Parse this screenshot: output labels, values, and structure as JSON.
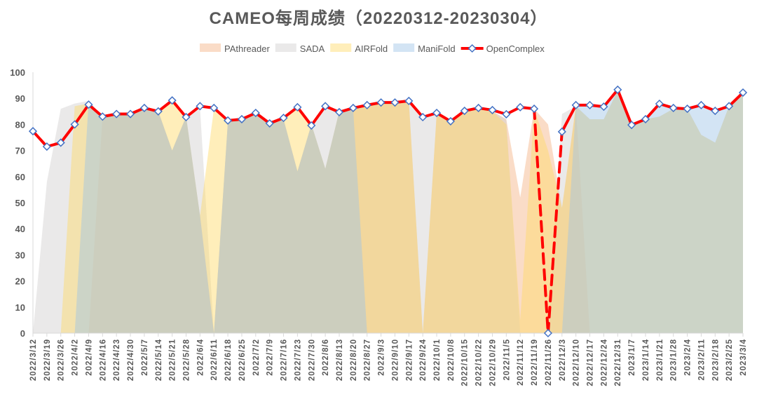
{
  "chart_data": {
    "type": "area",
    "title": "CAMEO每周成绩（20220312-20230304）",
    "xlabel": "",
    "ylabel": "",
    "ylim": [
      0,
      100
    ],
    "yticks": [
      "0",
      "10",
      "20",
      "30",
      "40",
      "50",
      "60",
      "70",
      "80",
      "90",
      "100"
    ],
    "legend_position": "top",
    "categories": [
      "2022/3/12",
      "2022/3/19",
      "2022/3/26",
      "2022/4/2",
      "2022/4/9",
      "2022/4/16",
      "2022/4/23",
      "2022/4/30",
      "2022/5/7",
      "2022/5/14",
      "2022/5/21",
      "2022/5/28",
      "2022/6/4",
      "2022/6/11",
      "2022/6/18",
      "2022/6/25",
      "2022/7/2",
      "2022/7/9",
      "2022/7/16",
      "2022/7/23",
      "2022/7/30",
      "2022/8/6",
      "2022/8/13",
      "2022/8/20",
      "2022/8/27",
      "2022/9/3",
      "2022/9/10",
      "2022/9/17",
      "2022/9/24",
      "2022/10/1",
      "2022/10/8",
      "2022/10/15",
      "2022/10/22",
      "2022/10/29",
      "2022/11/5",
      "2022/11/12",
      "2022/11/19",
      "2022/11/26",
      "2022/12/3",
      "2022/12/10",
      "2022/12/17",
      "2022/12/24",
      "2022/12/31",
      "2023/1/7",
      "2023/1/14",
      "2023/1/21",
      "2023/1/28",
      "2023/2/4",
      "2023/2/11",
      "2023/2/18",
      "2023/2/25",
      "2023/3/4"
    ],
    "series": [
      {
        "name": "PAthreader",
        "kind": "area",
        "color": "#f4b183",
        "values": [
          0,
          0,
          0,
          0,
          0,
          83,
          84,
          84,
          86,
          85,
          70,
          83,
          45,
          0,
          81,
          82,
          84,
          80,
          82,
          62,
          80,
          63,
          85,
          86,
          87,
          88,
          88,
          89,
          0,
          84,
          81,
          85,
          86,
          85,
          82,
          52,
          86,
          80,
          48,
          87,
          0,
          0,
          0,
          0,
          0,
          0,
          0,
          0,
          0,
          0,
          0,
          0
        ]
      },
      {
        "name": "SADA",
        "kind": "area",
        "color": "#d0cece",
        "values": [
          0,
          58,
          86,
          88,
          89,
          83,
          84,
          84,
          86,
          85,
          70,
          83,
          86,
          0,
          81,
          82,
          84,
          80,
          82,
          62,
          80,
          87,
          85,
          86,
          87,
          88,
          88,
          89,
          83,
          84,
          81,
          85,
          86,
          85,
          82,
          0,
          0,
          0,
          84,
          87,
          82,
          82,
          93,
          80,
          82,
          83,
          86,
          86,
          76,
          73,
          87,
          92
        ]
      },
      {
        "name": "AIRFold",
        "kind": "area",
        "color": "#ffd966",
        "values": [
          0,
          0,
          0,
          87,
          88,
          83,
          84,
          84,
          86,
          85,
          89,
          83,
          45,
          86,
          81,
          82,
          84,
          80,
          82,
          86,
          80,
          63,
          85,
          86,
          87,
          88,
          88,
          89,
          0,
          84,
          81,
          85,
          86,
          85,
          80,
          5,
          86,
          70,
          48,
          87,
          82,
          82,
          93,
          80,
          82,
          83,
          86,
          86,
          76,
          73,
          87,
          92
        ]
      },
      {
        "name": "ManiFold",
        "kind": "area",
        "color": "#9dc3e6",
        "values": [
          0,
          0,
          0,
          0,
          89,
          83,
          84,
          84,
          86,
          85,
          70,
          83,
          45,
          0,
          81,
          82,
          84,
          80,
          82,
          62,
          80,
          63,
          85,
          86,
          0,
          0,
          0,
          0,
          0,
          0,
          0,
          0,
          0,
          0,
          0,
          0,
          0,
          0,
          0,
          87,
          87,
          87,
          93,
          80,
          82,
          88,
          86,
          86,
          87,
          85,
          87,
          92
        ]
      },
      {
        "name": "OpenComplex",
        "kind": "line",
        "color": "#ff0000",
        "marker_color": "#4472c4",
        "values": [
          77.4,
          71.5,
          73,
          80,
          87.6,
          83,
          84,
          84,
          86.3,
          85,
          89.2,
          82.8,
          87,
          86.3,
          81.5,
          82,
          84.4,
          80.4,
          82.5,
          86.6,
          79.6,
          87,
          84.7,
          86.3,
          87.4,
          88.4,
          88.4,
          89,
          82.8,
          84.4,
          81.2,
          85.2,
          86.3,
          85.5,
          83.9,
          86.6,
          86,
          0,
          77.2,
          87.4,
          87.4,
          86.8,
          93.3,
          79.8,
          82,
          87.9,
          86.3,
          86,
          87.4,
          85.2,
          87,
          92.2
        ],
        "dashed_segments_around_index": 37
      }
    ]
  }
}
